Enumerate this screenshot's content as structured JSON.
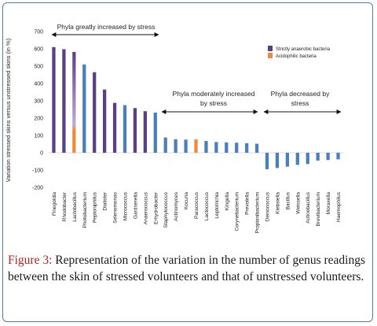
{
  "chart_data": {
    "type": "bar",
    "ylabel": "Variation stressed skins versus unstressed skins (in %)",
    "ylim": [
      -200,
      700
    ],
    "yticks": [
      -200,
      -100,
      0,
      100,
      200,
      300,
      400,
      500,
      600,
      700
    ],
    "grid": false,
    "legend_position": "top-right",
    "legend": [
      {
        "name": "Strictly anaerobic bacteria",
        "color": "#5b3f86"
      },
      {
        "name": "Acidophilic bacteria",
        "color": "#ef8a3a"
      }
    ],
    "colors": {
      "default": "#4a7fbf",
      "anaerobic": "#5b3f86",
      "acidophilic": "#ef8a3a"
    },
    "categories": [
      "Finegoldia",
      "Rhodobacter",
      "Lactobacillus",
      "Photobacterium",
      "Peptoniphilus",
      "Dialister",
      "Selenomonas",
      "Micrococcus",
      "Gardnerella",
      "Anaerococcus",
      "Erhydrobacter",
      "Staphylococcus",
      "Actinomyces",
      "Kocuria",
      "Paracoccus",
      "Lactococcus",
      "Leptotrichia",
      "Kingella",
      "Corynebacterium",
      "Prevotella",
      "Propionibacterium",
      "Deinococcus",
      "Klebsiella",
      "Bacillus",
      "Weissella",
      "Actinobacillus",
      "Brevibacterium",
      "Moraxella",
      "Haemophilus"
    ],
    "values": [
      610,
      598,
      582,
      510,
      465,
      365,
      288,
      275,
      258,
      240,
      232,
      88,
      78,
      76,
      77,
      68,
      62,
      60,
      58,
      55,
      52,
      -95,
      -88,
      -80,
      -70,
      -65,
      -45,
      -42,
      -38
    ],
    "bar_types": [
      "anaerobic",
      "anaerobic",
      "acidophilic",
      "default",
      "anaerobic",
      "anaerobic",
      "anaerobic",
      "default",
      "anaerobic",
      "anaerobic",
      "default",
      "default",
      "default",
      "default",
      "acidophilic",
      "default",
      "default",
      "default",
      "default",
      "default",
      "default",
      "default",
      "default",
      "default",
      "default",
      "default",
      "default",
      "default",
      "default"
    ],
    "annotations": [
      {
        "text": "Phyla greatly increased by stress"
      },
      {
        "text": "Phyla moderately increased by stress"
      },
      {
        "text": "Phyla decreased by stress"
      }
    ]
  },
  "caption": {
    "label": "Figure 3:",
    "text": " Representation of the variation in the number of genus readings between the skin of stressed volunteers and that of unstressed volunteers."
  }
}
